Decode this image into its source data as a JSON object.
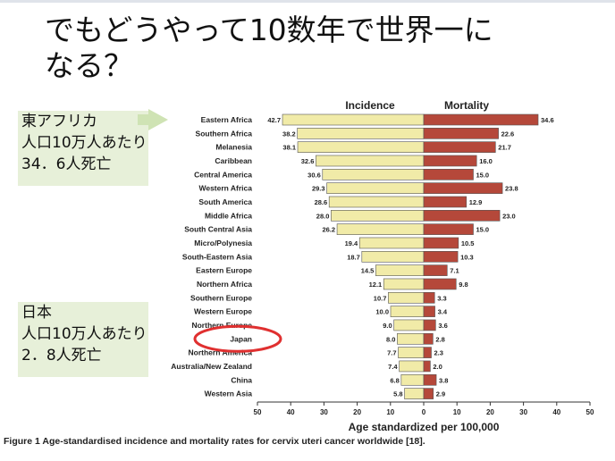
{
  "slide": {
    "title_line1": "でもどうやって10数年で世界一に",
    "title_line2": "なる？"
  },
  "callouts": {
    "east_africa": [
      "東アフリカ",
      "人口10万人あたり",
      "34．6人死亡"
    ],
    "japan": [
      "日本",
      "人口10万人あたり",
      "2．8人死亡"
    ]
  },
  "colors": {
    "incidence": "#f1eba8",
    "mortality": "#b5483a",
    "callout_bg": "#e7f0d9",
    "highlight_circle": "#e03030"
  },
  "icons": {
    "callout_arrow": "right-arrow-icon",
    "japan_marker": "circle-highlight-icon"
  },
  "chart_data": {
    "type": "bar",
    "orientation": "horizontal-butterfly",
    "categories": [
      "Eastern Africa",
      "Southern Africa",
      "Melanesia",
      "Caribbean",
      "Central America",
      "Western Africa",
      "South America",
      "Middle Africa",
      "South Central Asia",
      "Micro/Polynesia",
      "South-Eastern Asia",
      "Eastern Europe",
      "Northern Africa",
      "Southern Europe",
      "Western Europe",
      "Northern Europe",
      "Japan",
      "Northern America",
      "Australia/New Zealand",
      "China",
      "Western Asia"
    ],
    "series": [
      {
        "name": "Incidence",
        "values": [
          42.7,
          38.2,
          38.1,
          32.6,
          30.6,
          29.3,
          28.6,
          28.0,
          26.2,
          19.4,
          18.7,
          14.5,
          12.1,
          10.7,
          10.0,
          9.0,
          8.0,
          7.7,
          7.4,
          6.8,
          5.8
        ]
      },
      {
        "name": "Mortality",
        "values": [
          34.6,
          22.6,
          21.7,
          16.0,
          15.0,
          23.8,
          12.9,
          23.0,
          15.0,
          10.5,
          10.3,
          7.1,
          9.8,
          3.3,
          3.4,
          3.6,
          2.8,
          2.3,
          2.0,
          3.8,
          2.9
        ]
      }
    ],
    "xlabel": "Age standardized per 100,000",
    "ticks": [
      50,
      40,
      30,
      20,
      10,
      0,
      10,
      20,
      30,
      40,
      50
    ],
    "xlim": [
      -50,
      50
    ],
    "highlight": "Japan",
    "caption": "Figure 1 Age-standardised incidence and mortality rates for cervix uteri cancer worldwide [18]."
  }
}
